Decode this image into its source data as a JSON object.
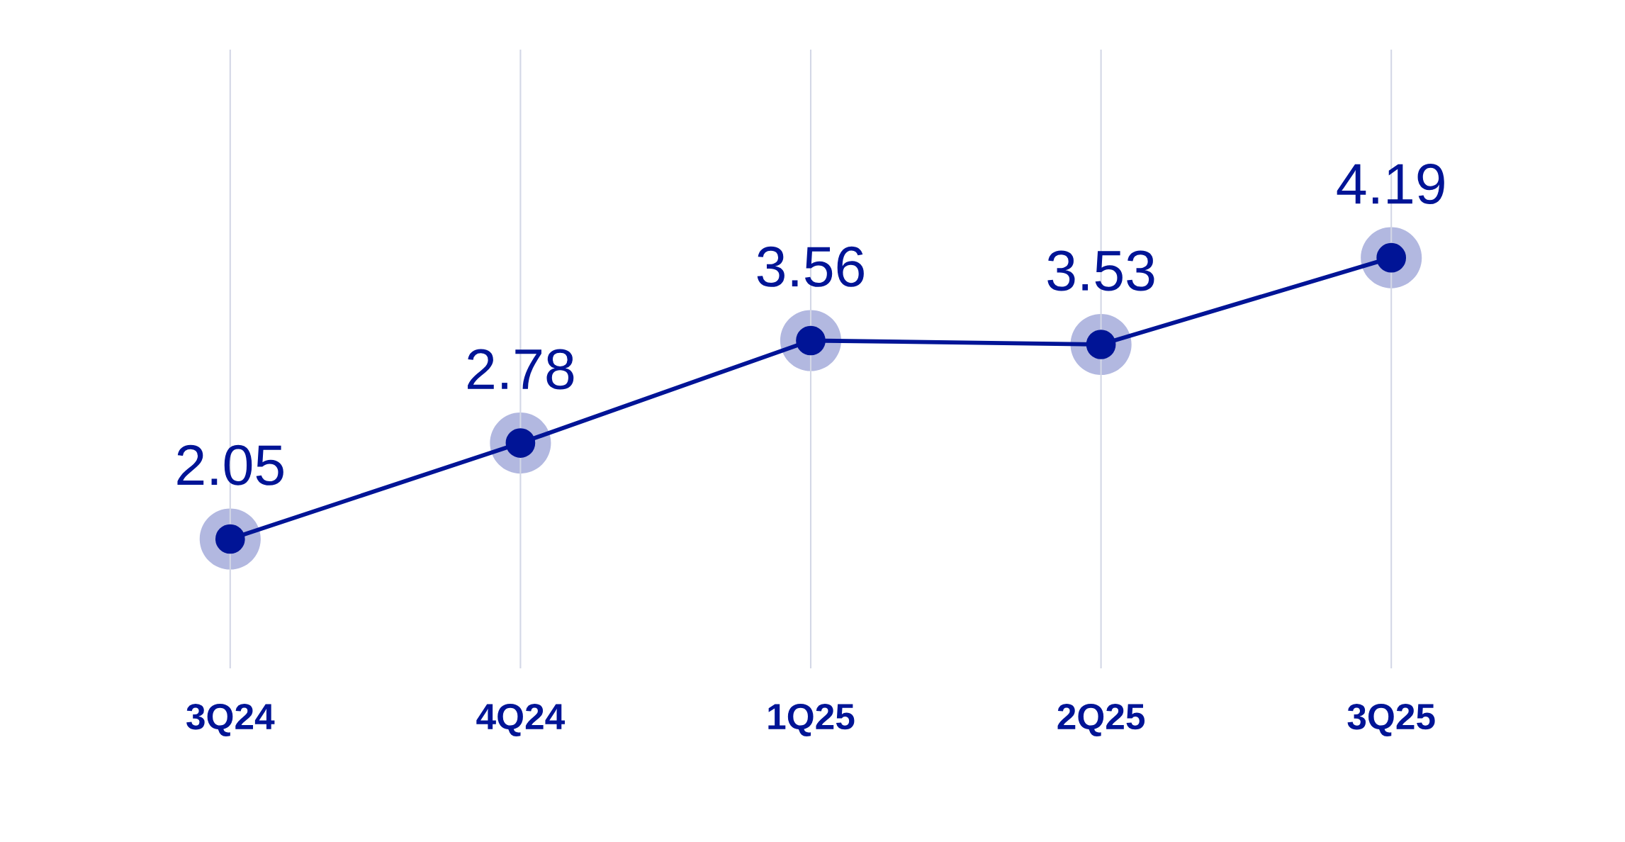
{
  "chart_data": {
    "type": "line",
    "categories": [
      "3Q24",
      "4Q24",
      "1Q25",
      "2Q25",
      "3Q25"
    ],
    "series": [
      {
        "color": "#001496",
        "values": [
          2.05,
          2.78,
          3.56,
          3.53,
          4.19
        ]
      }
    ],
    "data_labels": true,
    "marker": "circle",
    "grid": "x",
    "tick_labels": "x"
  }
}
